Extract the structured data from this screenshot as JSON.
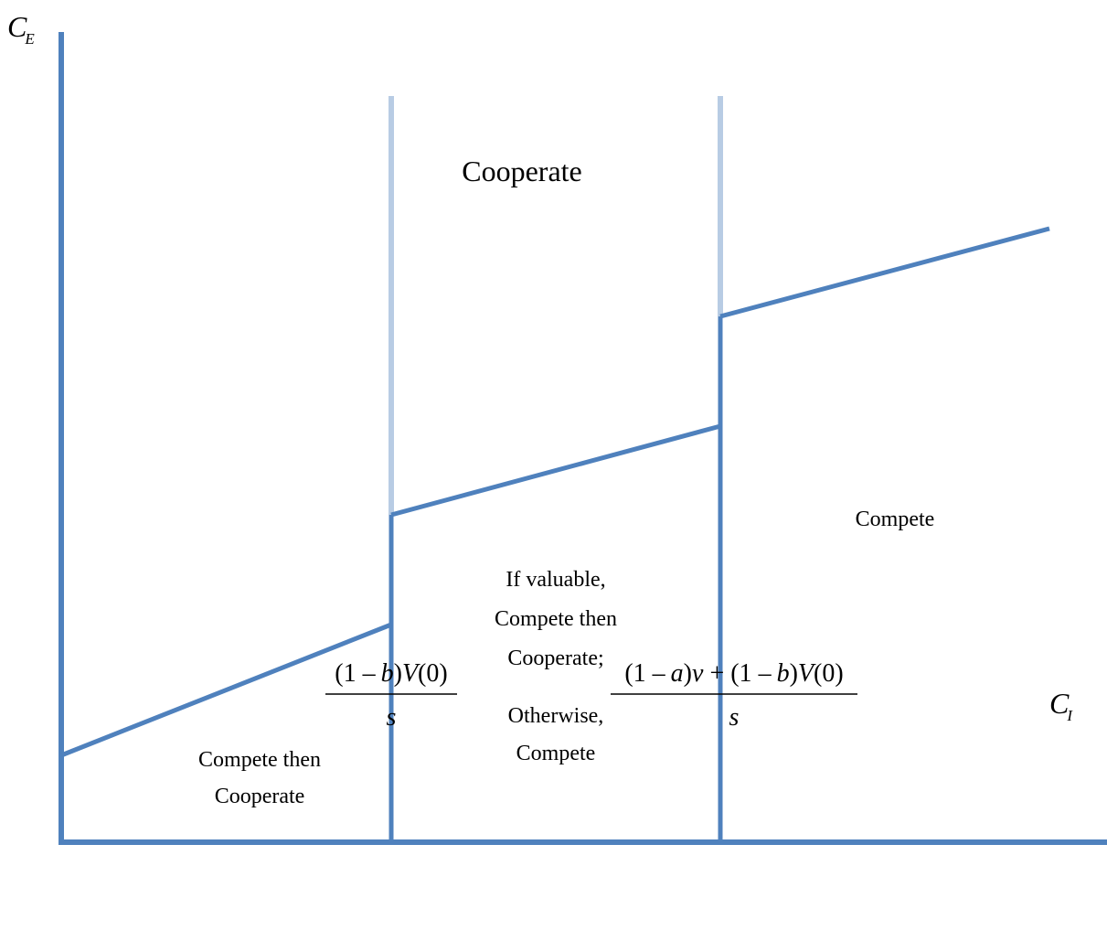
{
  "axes": {
    "y_label": {
      "main": "C",
      "sub": "E"
    },
    "x_label": {
      "main": "C",
      "sub": "I"
    }
  },
  "regions": {
    "top": "Cooperate",
    "right": "Compete",
    "middle_line1": "If valuable,",
    "middle_line2": "Compete then",
    "middle_line3": "Cooperate;",
    "middle_line4": "Otherwise,",
    "middle_line5": "Compete",
    "left_line1": "Compete then",
    "left_line2": "Cooperate"
  },
  "thresholds": {
    "first": {
      "n_open": "(1 ",
      "n_minus": "–",
      "n_var": "b",
      "n_mid": ")",
      "n_fn": "V",
      "n_close": "(0)",
      "denominator": "s"
    },
    "second": {
      "n_p1": "(1 ",
      "n_minus1": "–",
      "n_var1": "a",
      "n_p2": ")",
      "n_v": "v",
      "n_plus": " + (1 ",
      "n_minus2": "–",
      "n_var2": "b",
      "n_p3": ")",
      "n_fn": "V",
      "n_close": "(0)",
      "denominator": "s"
    }
  },
  "colors": {
    "boundary": "#4f81bd",
    "guide": "#b8cce4"
  }
}
